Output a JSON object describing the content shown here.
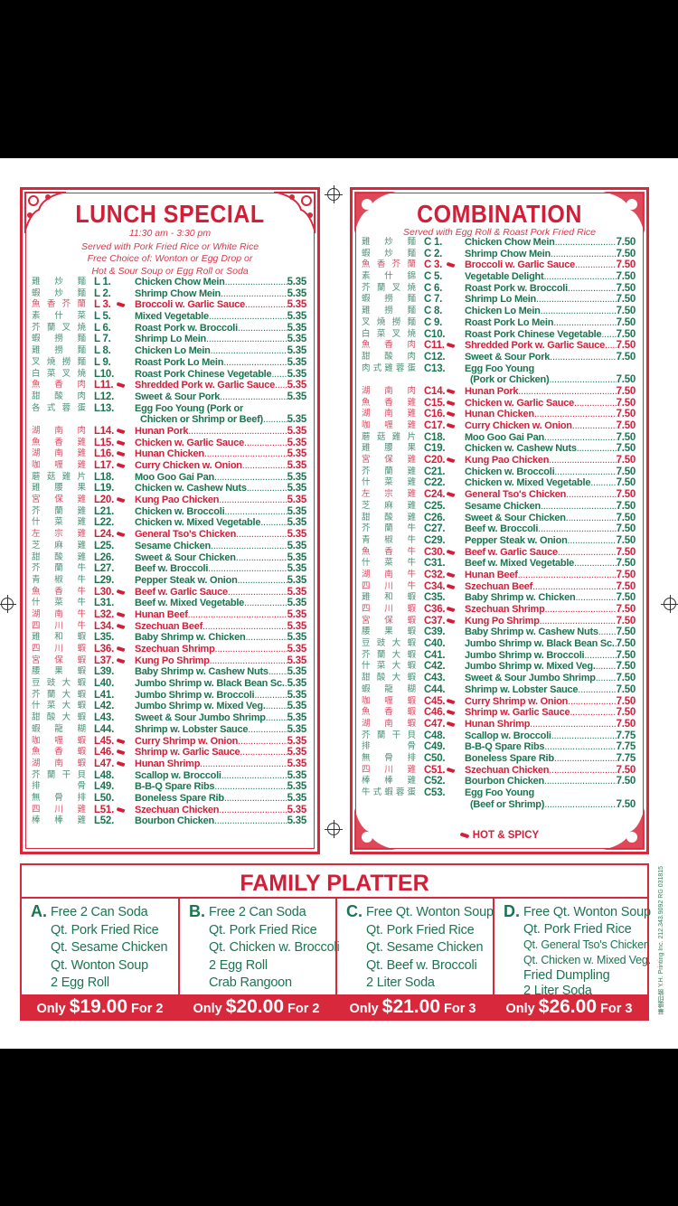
{
  "colors": {
    "green": "#1d7452",
    "red": "#d21f3a",
    "frame": "#d8283c"
  },
  "lunch": {
    "title": "LUNCH SPECIAL",
    "time": "11:30 am - 3:30 pm",
    "notes": [
      "Served with Pork Fried Rice or White Rice",
      "Free Choice of: Wonton or Egg Drop or",
      "Hot & Sour Soup or Egg Roll or Soda"
    ],
    "items": [
      {
        "zh": "雞炒麵",
        "code": "L 1.",
        "name": "Chicken Chow Mein",
        "price": "5.35"
      },
      {
        "zh": "蝦炒麵",
        "code": "L 2.",
        "name": "Shrimp Chow Mein",
        "price": "5.35"
      },
      {
        "zh": "魚香芥蘭",
        "code": "L 3.",
        "name": "Broccoli w. Garlic Sauce",
        "price": "5.35",
        "spicy": true
      },
      {
        "zh": "素什菜",
        "code": "L 5.",
        "name": "Mixed Vegetable",
        "price": "5.35"
      },
      {
        "zh": "芥蘭叉燒",
        "code": "L 6.",
        "name": "Roast Pork w. Broccoli",
        "price": "5.35"
      },
      {
        "zh": "蝦撈麵",
        "code": "L 7.",
        "name": "Shrimp Lo Mein",
        "price": "5.35"
      },
      {
        "zh": "雞撈麵",
        "code": "L 8.",
        "name": "Chicken Lo Mein",
        "price": "5.35"
      },
      {
        "zh": "叉燒撈麵",
        "code": "L 9.",
        "name": "Roast Pork Lo Mein",
        "price": "5.35"
      },
      {
        "zh": "白菜叉燒",
        "code": "L10.",
        "name": "Roast Pork Chinese Vegetable",
        "price": "5.35"
      },
      {
        "zh": "魚香肉",
        "code": "L11.",
        "name": "Shredded Pork w. Garlic Sauce",
        "price": "5.35",
        "spicy": true
      },
      {
        "zh": "甜酸肉",
        "code": "L12.",
        "name": "Sweet & Sour Pork",
        "price": "5.35"
      },
      {
        "zh": "各式蓉蛋",
        "code": "L13.",
        "name": "Egg Foo Young (Pork or",
        "name2": "Chicken or Shrimp or Beef)",
        "price": "5.35"
      },
      {
        "zh": "湖南肉",
        "code": "L14.",
        "name": "Hunan Pork",
        "price": "5.35",
        "spicy": true
      },
      {
        "zh": "魚香雞",
        "code": "L15.",
        "name": "Chicken w. Garlic Sauce",
        "price": "5.35",
        "spicy": true
      },
      {
        "zh": "湖南雞",
        "code": "L16.",
        "name": "Hunan Chicken",
        "price": "5.35",
        "spicy": true
      },
      {
        "zh": "咖喱雞",
        "code": "L17.",
        "name": "Curry Chicken w. Onion",
        "price": "5.35",
        "spicy": true
      },
      {
        "zh": "蘑菇雞片",
        "code": "L18.",
        "name": "Moo Goo Gai Pan",
        "price": "5.35"
      },
      {
        "zh": "雞腰果",
        "code": "L19.",
        "name": "Chicken w. Cashew Nuts",
        "price": "5.35"
      },
      {
        "zh": "宮保雞",
        "code": "L20.",
        "name": "Kung Pao Chicken",
        "price": "5.35",
        "spicy": true
      },
      {
        "zh": "芥蘭雞",
        "code": "L21.",
        "name": "Chicken w. Broccoli",
        "price": "5.35"
      },
      {
        "zh": "什菜雞",
        "code": "L22.",
        "name": "Chicken w. Mixed Vegetable",
        "price": "5.35"
      },
      {
        "zh": "左宗雞",
        "code": "L24.",
        "name": "General Tso's Chicken",
        "price": "5.35",
        "spicy": true
      },
      {
        "zh": "芝麻雞",
        "code": "L25.",
        "name": "Sesame Chicken",
        "price": "5.35"
      },
      {
        "zh": "甜酸雞",
        "code": "L26.",
        "name": "Sweet & Sour Chicken",
        "price": "5.35"
      },
      {
        "zh": "芥蘭牛",
        "code": "L27.",
        "name": "Beef w. Broccoli",
        "price": "5.35"
      },
      {
        "zh": "青椒牛",
        "code": "L29.",
        "name": "Pepper Steak w. Onion",
        "price": "5.35"
      },
      {
        "zh": "魚香牛",
        "code": "L30.",
        "name": "Beef w. Garlic Sauce",
        "price": "5.35",
        "spicy": true
      },
      {
        "zh": "什菜牛",
        "code": "L31.",
        "name": "Beef w. Mixed Vegetable",
        "price": "5.35"
      },
      {
        "zh": "湖南牛",
        "code": "L32.",
        "name": "Hunan Beef",
        "price": "5.35",
        "spicy": true
      },
      {
        "zh": "四川牛",
        "code": "L34.",
        "name": "Szechuan Beef",
        "price": "5.35",
        "spicy": true
      },
      {
        "zh": "雞和蝦",
        "code": "L35.",
        "name": "Baby Shrimp w. Chicken",
        "price": "5.35"
      },
      {
        "zh": "四川蝦",
        "code": "L36.",
        "name": "Szechuan Shrimp",
        "price": "5.35",
        "spicy": true
      },
      {
        "zh": "宮保蝦",
        "code": "L37.",
        "name": "Kung Po Shrimp",
        "price": "5.35",
        "spicy": true
      },
      {
        "zh": "腰果蝦",
        "code": "L39.",
        "name": "Baby Shrimp w. Cashew Nuts",
        "price": "5.35"
      },
      {
        "zh": "豆豉大蝦",
        "code": "L40.",
        "name": "Jumbo Shrimp w. Black Bean Sc.",
        "price": "5.35"
      },
      {
        "zh": "芥蘭大蝦",
        "code": "L41.",
        "name": "Jumbo Shrimp w. Broccoli",
        "price": "5.35"
      },
      {
        "zh": "什菜大蝦",
        "code": "L42.",
        "name": "Jumbo Shrimp w. Mixed Veg.",
        "price": "5.35"
      },
      {
        "zh": "甜酸大蝦",
        "code": "L43.",
        "name": "Sweet & Sour Jumbo Shrimp",
        "price": "5.35"
      },
      {
        "zh": "蝦龍糊",
        "code": "L44.",
        "name": "Shrimp w. Lobster Sauce",
        "price": "5.35"
      },
      {
        "zh": "咖喱蝦",
        "code": "L45.",
        "name": "Curry Shrimp w. Onion",
        "price": "5.35",
        "spicy": true
      },
      {
        "zh": "魚香蝦",
        "code": "L46.",
        "name": "Shrimp w. Garlic Sauce",
        "price": "5.35",
        "spicy": true
      },
      {
        "zh": "湖南蝦",
        "code": "L47.",
        "name": "Hunan Shrimp",
        "price": "5.35",
        "spicy": true
      },
      {
        "zh": "芥蘭干貝",
        "code": "L48.",
        "name": "Scallop w. Broccoli",
        "price": "5.35"
      },
      {
        "zh": "排骨",
        "code": "L49.",
        "name": "B-B-Q Spare Ribs",
        "price": "5.35"
      },
      {
        "zh": "無骨排",
        "code": "L50.",
        "name": "Boneless Spare Rib",
        "price": "5.35"
      },
      {
        "zh": "四川雞",
        "code": "L51.",
        "name": "Szechuan Chicken",
        "price": "5.35",
        "spicy": true
      },
      {
        "zh": "棒棒雞",
        "code": "L52.",
        "name": "Bourbon Chicken",
        "price": "5.35"
      }
    ]
  },
  "combination": {
    "title": "COMBINATION",
    "note": "Served with Egg Roll & Roast Pork Fried Rice",
    "hot_label": "HOT & SPICY",
    "items": [
      {
        "zh": "雞炒麵",
        "code": "C 1.",
        "name": "Chicken Chow Mein",
        "price": "7.50"
      },
      {
        "zh": "蝦炒麵",
        "code": "C 2.",
        "name": "Shrimp Chow Mein",
        "price": "7.50"
      },
      {
        "zh": "魚香芥蘭",
        "code": "C 3.",
        "name": "Broccoli w. Garlic Sauce",
        "price": "7.50",
        "spicy": true
      },
      {
        "zh": "素什錦",
        "code": "C 5.",
        "name": "Vegetable Delight",
        "price": "7.50"
      },
      {
        "zh": "芥蘭叉燒",
        "code": "C 6.",
        "name": "Roast Pork w. Broccoli",
        "price": "7.50"
      },
      {
        "zh": "蝦撈麵",
        "code": "C 7.",
        "name": "Shrimp Lo Mein",
        "price": "7.50"
      },
      {
        "zh": "雞撈麵",
        "code": "C 8.",
        "name": "Chicken Lo Mein",
        "price": "7.50"
      },
      {
        "zh": "叉燒撈麵",
        "code": "C 9.",
        "name": "Roast Pork Lo Mein",
        "price": "7.50"
      },
      {
        "zh": "白菜叉燒",
        "code": "C10.",
        "name": "Roast Pork Chinese Vegetable",
        "price": "7.50"
      },
      {
        "zh": "魚香肉",
        "code": "C11.",
        "name": "Shredded Pork w. Garlic Sauce",
        "price": "7.50",
        "spicy": true
      },
      {
        "zh": "甜酸肉",
        "code": "C12.",
        "name": "Sweet & Sour Pork",
        "price": "7.50"
      },
      {
        "zh": "肉式雞蓉蛋",
        "code": "C13.",
        "name": "Egg Foo Young",
        "name2": "(Pork or Chicken)",
        "price": "7.50"
      },
      {
        "zh": "湖南肉",
        "code": "C14.",
        "name": "Hunan Pork",
        "price": "7.50",
        "spicy": true
      },
      {
        "zh": "魚香雞",
        "code": "C15.",
        "name": "Chicken w. Garlic Sauce",
        "price": "7.50",
        "spicy": true
      },
      {
        "zh": "湖南雞",
        "code": "C16.",
        "name": "Hunan Chicken",
        "price": "7.50",
        "spicy": true
      },
      {
        "zh": "咖喱雞",
        "code": "C17.",
        "name": "Curry Chicken w. Onion",
        "price": "7.50",
        "spicy": true
      },
      {
        "zh": "蘑菇雞片",
        "code": "C18.",
        "name": "Moo Goo Gai Pan",
        "price": "7.50"
      },
      {
        "zh": "雞腰果",
        "code": "C19.",
        "name": "Chicken w. Cashew Nuts",
        "price": "7.50"
      },
      {
        "zh": "宮保雞",
        "code": "C20.",
        "name": "Kung Pao Chicken",
        "price": "7.50",
        "spicy": true
      },
      {
        "zh": "芥蘭雞",
        "code": "C21.",
        "name": "Chicken w. Broccoli",
        "price": "7.50"
      },
      {
        "zh": "什菜雞",
        "code": "C22.",
        "name": "Chicken w. Mixed Vegetable",
        "price": "7.50"
      },
      {
        "zh": "左宗雞",
        "code": "C24.",
        "name": "General Tso's Chicken",
        "price": "7.50",
        "spicy": true
      },
      {
        "zh": "芝麻雞",
        "code": "C25.",
        "name": "Sesame Chicken",
        "price": "7.50"
      },
      {
        "zh": "甜酸雞",
        "code": "C26.",
        "name": "Sweet & Sour Chicken",
        "price": "7.50"
      },
      {
        "zh": "芥蘭牛",
        "code": "C27.",
        "name": "Beef w. Broccoli",
        "price": "7.50"
      },
      {
        "zh": "青椒牛",
        "code": "C29.",
        "name": "Pepper Steak w. Onion",
        "price": "7.50"
      },
      {
        "zh": "魚香牛",
        "code": "C30.",
        "name": "Beef w. Garlic Sauce",
        "price": "7.50",
        "spicy": true
      },
      {
        "zh": "什菜牛",
        "code": "C31.",
        "name": "Beef w. Mixed Vegetable",
        "price": "7.50"
      },
      {
        "zh": "湖南牛",
        "code": "C32.",
        "name": "Hunan Beef",
        "price": "7.50",
        "spicy": true
      },
      {
        "zh": "四川牛",
        "code": "C34.",
        "name": "Szechuan Beef",
        "price": "7.50",
        "spicy": true
      },
      {
        "zh": "雞和蝦",
        "code": "C35.",
        "name": "Baby Shrimp w. Chicken",
        "price": "7.50"
      },
      {
        "zh": "四川蝦",
        "code": "C36.",
        "name": "Szechuan Shrimp",
        "price": "7.50",
        "spicy": true
      },
      {
        "zh": "宮保蝦",
        "code": "C37.",
        "name": "Kung Po Shrimp",
        "price": "7.50",
        "spicy": true
      },
      {
        "zh": "腰果蝦",
        "code": "C39.",
        "name": "Baby Shrimp w. Cashew Nuts",
        "price": "7.50"
      },
      {
        "zh": "豆豉大蝦",
        "code": "C40.",
        "name": "Jumbo Shrimp w. Black Bean Sc.",
        "price": "7.50"
      },
      {
        "zh": "芥蘭大蝦",
        "code": "C41.",
        "name": "Jumbo Shrimp w. Broccoli",
        "price": "7.50"
      },
      {
        "zh": "什菜大蝦",
        "code": "C42.",
        "name": "Jumbo Shrimp w. Mixed Veg.",
        "price": "7.50"
      },
      {
        "zh": "甜酸大蝦",
        "code": "C43.",
        "name": "Sweet & Sour Jumbo Shrimp",
        "price": "7.50"
      },
      {
        "zh": "蝦龍糊",
        "code": "C44.",
        "name": "Shrimp w. Lobster Sauce",
        "price": "7.50"
      },
      {
        "zh": "咖喱蝦",
        "code": "C45.",
        "name": "Curry Shrimp w. Onion",
        "price": "7.50",
        "spicy": true
      },
      {
        "zh": "魚香蝦",
        "code": "C46.",
        "name": "Shrimp w. Garlic Sauce",
        "price": "7.50",
        "spicy": true
      },
      {
        "zh": "湖南蝦",
        "code": "C47.",
        "name": "Hunan Shrimp",
        "price": "7.50",
        "spicy": true
      },
      {
        "zh": "芥蘭干貝",
        "code": "C48.",
        "name": "Scallop w. Broccoli",
        "price": "7.75"
      },
      {
        "zh": "排骨",
        "code": "C49.",
        "name": "B-B-Q Spare Ribs",
        "price": "7.75"
      },
      {
        "zh": "無骨排",
        "code": "C50.",
        "name": "Boneless Spare Rib",
        "price": "7.75"
      },
      {
        "zh": "四川雞",
        "code": "C51.",
        "name": "Szechuan Chicken",
        "price": "7.50",
        "spicy": true
      },
      {
        "zh": "棒棒雞",
        "code": "C52.",
        "name": "Bourbon Chicken",
        "price": "7.50"
      },
      {
        "zh": "牛式蝦蓉蛋",
        "code": "C53.",
        "name": "Egg Foo Young",
        "name2": "(Beef or Shrimp)",
        "price": "7.50"
      }
    ]
  },
  "family": {
    "title": "FAMILY PLATTER",
    "platters": [
      {
        "letter": "A.",
        "lines": [
          "Free 2 Can Soda",
          "Qt. Pork Fried Rice",
          "Qt. Sesame Chicken",
          "Qt. Wonton Soup",
          "2 Egg Roll"
        ],
        "only": "Only",
        "price": "$19.00",
        "for": "For 2"
      },
      {
        "letter": "B.",
        "lines": [
          "Free 2 Can Soda",
          "Qt. Pork Fried Rice",
          "Qt. Chicken w. Broccoli",
          "2 Egg Roll",
          "Crab Rangoon"
        ],
        "only": "Only",
        "price": "$20.00",
        "for": "For 2"
      },
      {
        "letter": "C.",
        "lines": [
          "Free Qt. Wonton Soup",
          "Qt. Pork Fried Rice",
          "Qt. Sesame Chicken",
          "Qt. Beef w. Broccoli",
          "2 Liter Soda"
        ],
        "only": "Only",
        "price": "$21.00",
        "for": "For 3"
      },
      {
        "letter": "D.",
        "lines": [
          "Free Qt. Wonton Soup",
          "Qt. Pork Fried Rice",
          "Qt. General Tso's Chicken",
          "Qt. Chicken w. Mixed Veg.",
          "Fried Dumpling",
          "2 Liter Soda"
        ],
        "only": "Only",
        "price": "$26.00",
        "for": "For 3"
      }
    ]
  },
  "printer_credit": "華盛印務 Y.H. Printing Inc. 212.343.9092 RG 031815"
}
